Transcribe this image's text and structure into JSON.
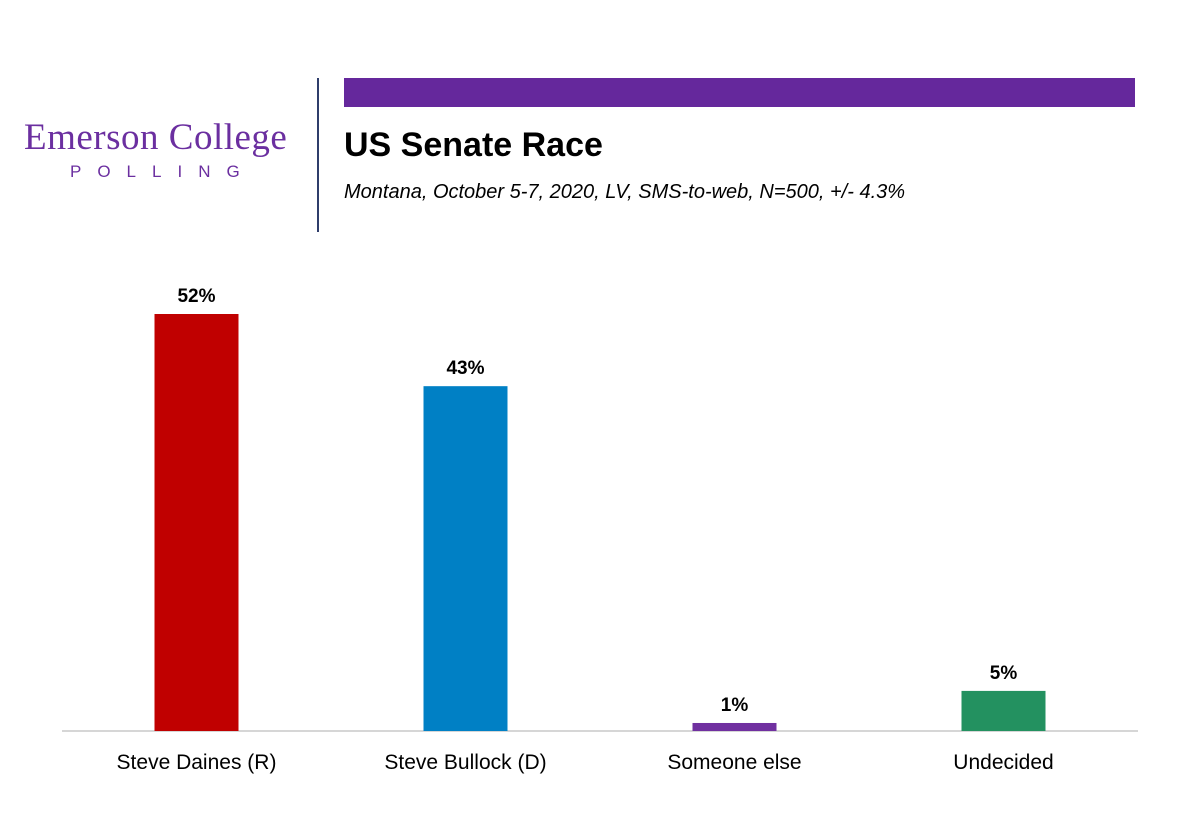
{
  "logo": {
    "name": "Emerson College",
    "sub": "POLLING"
  },
  "header": {
    "title": "US Senate Race",
    "subtitle": "Montana, October 5-7, 2020, LV, SMS-to-web, N=500, +/-  4.3%"
  },
  "colors": {
    "brand": "#65289c",
    "axis": "#c8c8c8"
  },
  "chart_data": {
    "type": "bar",
    "title": "US Senate Race",
    "categories": [
      "Steve Daines (R)",
      "Steve Bullock (D)",
      "Someone else",
      "Undecided"
    ],
    "values": [
      52,
      43,
      1,
      5
    ],
    "data_labels": [
      "52%",
      "43%",
      "1%",
      "5%"
    ],
    "colors": [
      "#c00000",
      "#0080c5",
      "#7030a0",
      "#239160"
    ],
    "ylim": [
      0,
      52
    ],
    "grid": false,
    "legend": "none",
    "xlabel": "",
    "ylabel": ""
  }
}
